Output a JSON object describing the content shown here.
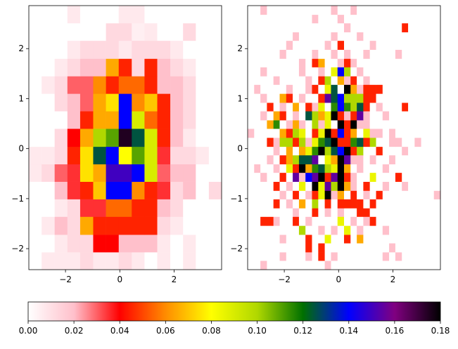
{
  "chart_data": [
    {
      "type": "hist2d",
      "xlim": [
        -3.35,
        3.75
      ],
      "ylim": [
        -2.42,
        2.86
      ],
      "xticks": [
        {
          "value": -2,
          "label": "−2"
        },
        0,
        2
      ],
      "yticks": [
        {
          "value": -2,
          "label": "−2"
        },
        {
          "value": -1,
          "label": "−1"
        },
        0,
        1,
        2
      ],
      "xbins": [
        -3.35,
        -2.88,
        -2.4,
        -1.93,
        -1.46,
        -0.98,
        -0.51,
        -0.04,
        0.44,
        0.91,
        1.38,
        1.86,
        2.33,
        2.8,
        3.28,
        3.75
      ],
      "ybins": [
        -2.42,
        -2.07,
        -1.72,
        -1.36,
        -1.01,
        -0.66,
        -0.31,
        0.04,
        0.4,
        0.75,
        1.1,
        1.45,
        1.8,
        2.16,
        2.51,
        2.86
      ],
      "values": [
        [
          0,
          0.007,
          0.007,
          0.007,
          0.012,
          0.007,
          0.007,
          0.012,
          0.007,
          0,
          0.007,
          0,
          0.007,
          0,
          0
        ],
        [
          0,
          0,
          0.007,
          0.012,
          0.012,
          0.04,
          0.04,
          0.02,
          0.02,
          0.02,
          0.007,
          0,
          0.007,
          0,
          0
        ],
        [
          0,
          0.007,
          0.02,
          0.012,
          0.065,
          0.045,
          0.045,
          0.045,
          0.045,
          0.045,
          0.012,
          0.007,
          0,
          0,
          0
        ],
        [
          0,
          0,
          0.007,
          0.012,
          0.035,
          0.035,
          0.055,
          0.055,
          0.045,
          0.045,
          0.02,
          0.012,
          0,
          0,
          0
        ],
        [
          0,
          0,
          0.02,
          0.035,
          0.045,
          0.07,
          0.14,
          0.14,
          0.06,
          0.045,
          0.035,
          0.012,
          0.02,
          0,
          0.012
        ],
        [
          0.007,
          0.012,
          0.03,
          0.035,
          0.075,
          0.065,
          0.15,
          0.15,
          0.14,
          0.09,
          0.03,
          0.02,
          0.02,
          0,
          0
        ],
        [
          0.007,
          0.007,
          0.012,
          0.045,
          0.075,
          0.125,
          0.14,
          0.08,
          0.11,
          0.09,
          0.035,
          0.012,
          0.012,
          0.007,
          0
        ],
        [
          0,
          0,
          0.012,
          0.04,
          0.065,
          0.1,
          0.11,
          0.175,
          0.125,
          0.09,
          0.045,
          0.02,
          0.007,
          0,
          0
        ],
        [
          0,
          0,
          0,
          0.02,
          0.045,
          0.065,
          0.065,
          0.14,
          0.09,
          0.055,
          0.045,
          0.02,
          0.012,
          0,
          0
        ],
        [
          0,
          0,
          0.012,
          0.02,
          0.03,
          0.065,
          0.075,
          0.14,
          0.06,
          0.07,
          0.045,
          0.02,
          0.012,
          0,
          0
        ],
        [
          0,
          0.007,
          0.012,
          0.03,
          0.03,
          0.06,
          0.045,
          0.055,
          0.055,
          0.045,
          0.02,
          0.02,
          0.012,
          0,
          0
        ],
        [
          0,
          0,
          0.007,
          0.012,
          0.02,
          0.02,
          0.065,
          0.045,
          0.012,
          0.045,
          0.02,
          0.012,
          0.007,
          0,
          0
        ],
        [
          0,
          0,
          0,
          0.007,
          0.012,
          0.012,
          0.012,
          0.007,
          0.012,
          0.012,
          0.012,
          0.007,
          0,
          0,
          0
        ],
        [
          0,
          0,
          0,
          0,
          0,
          0,
          0.012,
          0.012,
          0.005,
          0.007,
          0,
          0,
          0.012,
          0,
          0
        ],
        [
          0,
          0,
          0,
          0.007,
          0,
          0,
          0,
          0.007,
          0.007,
          0,
          0,
          0,
          0,
          0,
          0
        ]
      ]
    },
    {
      "type": "hist2d",
      "xlim": [
        -3.35,
        3.75
      ],
      "ylim": [
        -2.42,
        2.86
      ],
      "xticks": [
        {
          "value": -2,
          "label": "−2"
        },
        0,
        2
      ],
      "yticks": [
        {
          "value": -2,
          "label": "−2"
        },
        {
          "value": -1,
          "label": "−1"
        },
        0,
        1,
        2
      ],
      "xbins": [
        -3.35,
        -3.11,
        -2.88,
        -2.64,
        -2.4,
        -2.17,
        -1.93,
        -1.69,
        -1.46,
        -1.22,
        -0.98,
        -0.75,
        -0.51,
        -0.28,
        -0.04,
        0.2,
        0.44,
        0.67,
        0.91,
        1.15,
        1.38,
        1.62,
        1.86,
        2.09,
        2.33,
        2.56,
        2.8,
        3.04,
        3.28,
        3.51,
        3.75
      ],
      "ybins": [
        -2.42,
        -2.24,
        -2.07,
        -1.89,
        -1.72,
        -1.54,
        -1.36,
        -1.19,
        -1.01,
        -0.84,
        -0.66,
        -0.48,
        -0.31,
        -0.13,
        0.04,
        0.22,
        0.4,
        0.57,
        0.75,
        0.92,
        1.1,
        1.28,
        1.45,
        1.63,
        1.8,
        1.98,
        2.16,
        2.33,
        2.51,
        2.68,
        2.86
      ],
      "values": [
        [
          0,
          0,
          0.02,
          0,
          0,
          0,
          0,
          0,
          0,
          0,
          0,
          0,
          0.02,
          0,
          0,
          0,
          0,
          0,
          0,
          0,
          0,
          0,
          0,
          0,
          0,
          0,
          0,
          0,
          0,
          0
        ],
        [
          0,
          0,
          0,
          0,
          0,
          0.02,
          0,
          0,
          0,
          0.02,
          0,
          0.045,
          0,
          0.02,
          0,
          0,
          0,
          0,
          0,
          0,
          0,
          0.02,
          0,
          0.02,
          0,
          0,
          0,
          0,
          0,
          0
        ],
        [
          0,
          0,
          0,
          0,
          0,
          0,
          0,
          0,
          0,
          0.045,
          0,
          0.045,
          0,
          0,
          0,
          0,
          0,
          0,
          0,
          0,
          0,
          0,
          0.02,
          0,
          0,
          0,
          0,
          0,
          0,
          0
        ],
        [
          0,
          0,
          0,
          0,
          0,
          0.02,
          0,
          0,
          0,
          0.045,
          0,
          0,
          0.085,
          0,
          0,
          0.045,
          0,
          0.065,
          0,
          0,
          0,
          0,
          0,
          0,
          0,
          0,
          0,
          0,
          0,
          0
        ],
        [
          0,
          0,
          0,
          0,
          0,
          0,
          0,
          0,
          0.1,
          0,
          0,
          0.02,
          0,
          0.02,
          0,
          0.085,
          0,
          0.02,
          0,
          0,
          0,
          0.02,
          0,
          0,
          0,
          0,
          0,
          0,
          0,
          0
        ],
        [
          0,
          0,
          0.045,
          0.045,
          0.02,
          0,
          0,
          0.045,
          0,
          0.02,
          0,
          0,
          0,
          0,
          0.085,
          0,
          0.02,
          0,
          0.02,
          0.045,
          0,
          0,
          0,
          0,
          0,
          0,
          0,
          0,
          0,
          0
        ],
        [
          0,
          0,
          0,
          0,
          0,
          0,
          0,
          0.02,
          0,
          0,
          0.045,
          0,
          0.02,
          0,
          0.02,
          0,
          0,
          0.045,
          0.045,
          0,
          0,
          0,
          0,
          0,
          0,
          0,
          0,
          0,
          0,
          0
        ],
        [
          0,
          0,
          0,
          0,
          0.045,
          0,
          0.02,
          0,
          0.065,
          0,
          0.1,
          0,
          0.045,
          0,
          0.045,
          0.045,
          0.045,
          0.045,
          0,
          0.045,
          0,
          0,
          0,
          0,
          0,
          0,
          0,
          0,
          0,
          0
        ],
        [
          0,
          0,
          0,
          0,
          0,
          0.02,
          0,
          0.045,
          0,
          0.02,
          0.045,
          0.085,
          0.18,
          0.02,
          0.065,
          0,
          0.045,
          0,
          0.02,
          0,
          0.045,
          0,
          0,
          0,
          0,
          0,
          0,
          0,
          0,
          0.02
        ],
        [
          0,
          0,
          0,
          0,
          0.045,
          0,
          0.02,
          0,
          0.085,
          0,
          0.18,
          0.085,
          0.155,
          0.1,
          0.18,
          0.065,
          0.02,
          0,
          0.045,
          0,
          0,
          0.02,
          0,
          0,
          0.02,
          0,
          0,
          0,
          0,
          0
        ],
        [
          0,
          0,
          0.02,
          0,
          0,
          0.045,
          0,
          0.155,
          0.02,
          0.14,
          0.155,
          0.18,
          0.045,
          0.155,
          0.18,
          0.045,
          0.02,
          0,
          0,
          0.085,
          0,
          0,
          0,
          0.045,
          0,
          0,
          0,
          0,
          0,
          0
        ],
        [
          0,
          0.02,
          0,
          0,
          0.02,
          0,
          0.085,
          0.045,
          0.18,
          0.065,
          0.115,
          0.125,
          0.1,
          0.085,
          0.18,
          0.065,
          0,
          0.02,
          0,
          0,
          0,
          0.02,
          0,
          0,
          0,
          0,
          0,
          0,
          0,
          0
        ],
        [
          0,
          0,
          0,
          0.02,
          0,
          0.045,
          0.065,
          0.1,
          0.125,
          0.125,
          0.155,
          0,
          0.085,
          0.065,
          0.18,
          0.155,
          0.02,
          0.02,
          0,
          0.02,
          0,
          0,
          0.02,
          0,
          0,
          0,
          0,
          0,
          0,
          0
        ],
        [
          0,
          0,
          0,
          0,
          0.02,
          0,
          0.065,
          0,
          0.065,
          0.085,
          0.115,
          0.18,
          0.1,
          0.125,
          0.14,
          0.18,
          0.045,
          0.1,
          0,
          0,
          0.045,
          0,
          0,
          0,
          0.02,
          0,
          0,
          0,
          0,
          0
        ],
        [
          0,
          0,
          0,
          0.045,
          0.02,
          0.1,
          0.1,
          0.045,
          0.1,
          0.02,
          0.085,
          0.115,
          0.125,
          0.18,
          0.045,
          0.045,
          0.115,
          0.125,
          0.045,
          0.1,
          0,
          0,
          0.02,
          0.02,
          0,
          0,
          0.02,
          0,
          0,
          0
        ],
        [
          0.02,
          0,
          0,
          0,
          0,
          0.065,
          0.045,
          0.1,
          0.085,
          0,
          0.045,
          0.085,
          0.18,
          0.045,
          0.14,
          0.045,
          0.065,
          0,
          0.085,
          0.02,
          0.02,
          0,
          0.02,
          0,
          0,
          0,
          0,
          0,
          0,
          0
        ],
        [
          0,
          0,
          0,
          0.065,
          0.115,
          0,
          0.02,
          0.065,
          0.02,
          0,
          0.1,
          0.02,
          0.085,
          0,
          0.18,
          0.045,
          0.18,
          0.02,
          0.02,
          0,
          0,
          0,
          0,
          0,
          0,
          0,
          0,
          0,
          0,
          0
        ],
        [
          0,
          0,
          0.02,
          0,
          0.065,
          0.045,
          0,
          0.02,
          0,
          0.125,
          0.1,
          0.065,
          0.085,
          0.18,
          0.045,
          0.02,
          0.045,
          0.155,
          0.02,
          0,
          0,
          0.02,
          0,
          0,
          0,
          0,
          0,
          0,
          0,
          0
        ],
        [
          0,
          0,
          0,
          0.045,
          0,
          0.02,
          0,
          0.065,
          0,
          0.045,
          0.02,
          0.085,
          0,
          0.115,
          0.14,
          0.115,
          0.1,
          0.125,
          0.045,
          0,
          0.02,
          0,
          0,
          0,
          0.045,
          0,
          0,
          0,
          0,
          0
        ],
        [
          0,
          0,
          0.02,
          0,
          0,
          0.065,
          0.045,
          0,
          0.02,
          0,
          0,
          0.045,
          0.155,
          0.125,
          0.14,
          0.1,
          0.1,
          0.1,
          0.045,
          0.045,
          0,
          0,
          0,
          0,
          0,
          0,
          0,
          0,
          0,
          0
        ],
        [
          0,
          0.02,
          0,
          0,
          0,
          0,
          0.02,
          0,
          0,
          0.02,
          0.045,
          0,
          0.085,
          0.125,
          0,
          0.18,
          0.065,
          0.02,
          0.045,
          0.045,
          0.045,
          0,
          0,
          0,
          0,
          0,
          0,
          0,
          0,
          0
        ],
        [
          0,
          0,
          0,
          0,
          0.02,
          0,
          0,
          0,
          0,
          0.02,
          0,
          0.045,
          0.1,
          0,
          0.065,
          0.02,
          0.045,
          0,
          0.02,
          0,
          0,
          0,
          0,
          0,
          0,
          0,
          0,
          0,
          0,
          0
        ],
        [
          0,
          0,
          0.02,
          0,
          0,
          0,
          0,
          0,
          0.02,
          0,
          0,
          0.02,
          0,
          0.085,
          0.14,
          0.1,
          0,
          0.02,
          0,
          0,
          0,
          0,
          0,
          0,
          0,
          0,
          0,
          0,
          0,
          0
        ],
        [
          0,
          0,
          0,
          0,
          0,
          0,
          0,
          0,
          0.02,
          0,
          0.045,
          0.065,
          0,
          0,
          0.02,
          0.045,
          0.02,
          0,
          0,
          0,
          0,
          0,
          0,
          0,
          0,
          0,
          0,
          0,
          0,
          0
        ],
        [
          0,
          0,
          0,
          0,
          0,
          0.02,
          0,
          0,
          0,
          0,
          0.02,
          0,
          0,
          0.02,
          0,
          0.02,
          0,
          0,
          0.02,
          0,
          0,
          0,
          0,
          0.02,
          0,
          0,
          0,
          0,
          0,
          0
        ],
        [
          0,
          0,
          0,
          0,
          0,
          0,
          0.02,
          0,
          0,
          0,
          0,
          0,
          0.02,
          0,
          0.045,
          0,
          0,
          0,
          0,
          0.02,
          0,
          0,
          0,
          0,
          0,
          0,
          0,
          0,
          0,
          0
        ],
        [
          0,
          0,
          0,
          0,
          0,
          0,
          0,
          0.02,
          0,
          0,
          0,
          0,
          0,
          0.02,
          0,
          0,
          0,
          0.02,
          0,
          0,
          0,
          0,
          0,
          0,
          0,
          0,
          0,
          0,
          0,
          0
        ],
        [
          0,
          0,
          0,
          0,
          0,
          0,
          0,
          0,
          0,
          0,
          0,
          0,
          0,
          0,
          0,
          0.02,
          0,
          0,
          0,
          0,
          0,
          0,
          0,
          0,
          0.045,
          0,
          0,
          0,
          0,
          0
        ],
        [
          0,
          0,
          0,
          0,
          0,
          0,
          0,
          0,
          0,
          0,
          0.02,
          0,
          0,
          0,
          0.02,
          0,
          0,
          0,
          0,
          0,
          0,
          0,
          0,
          0,
          0,
          0,
          0,
          0,
          0,
          0
        ],
        [
          0,
          0,
          0.02,
          0,
          0,
          0,
          0,
          0,
          0,
          0,
          0,
          0,
          0,
          0.02,
          0,
          0,
          0.02,
          0,
          0,
          0,
          0,
          0,
          0,
          0,
          0,
          0,
          0,
          0,
          0,
          0
        ]
      ]
    }
  ],
  "colorbar": {
    "lim": [
      0,
      0.18
    ],
    "ticks": [
      {
        "value": 0,
        "label": "0.00"
      },
      0.02,
      0.04,
      0.06,
      0.08,
      {
        "value": 0.1,
        "label": "0.10"
      },
      0.12,
      0.14,
      0.16,
      0.18
    ],
    "colors": [
      "#ffffff",
      "#ffc0cb",
      "#ff0000",
      "#ff8c00",
      "#ffff00",
      "#b0d800",
      "#007000",
      "#0000ff",
      "#800080",
      "#000000"
    ]
  }
}
